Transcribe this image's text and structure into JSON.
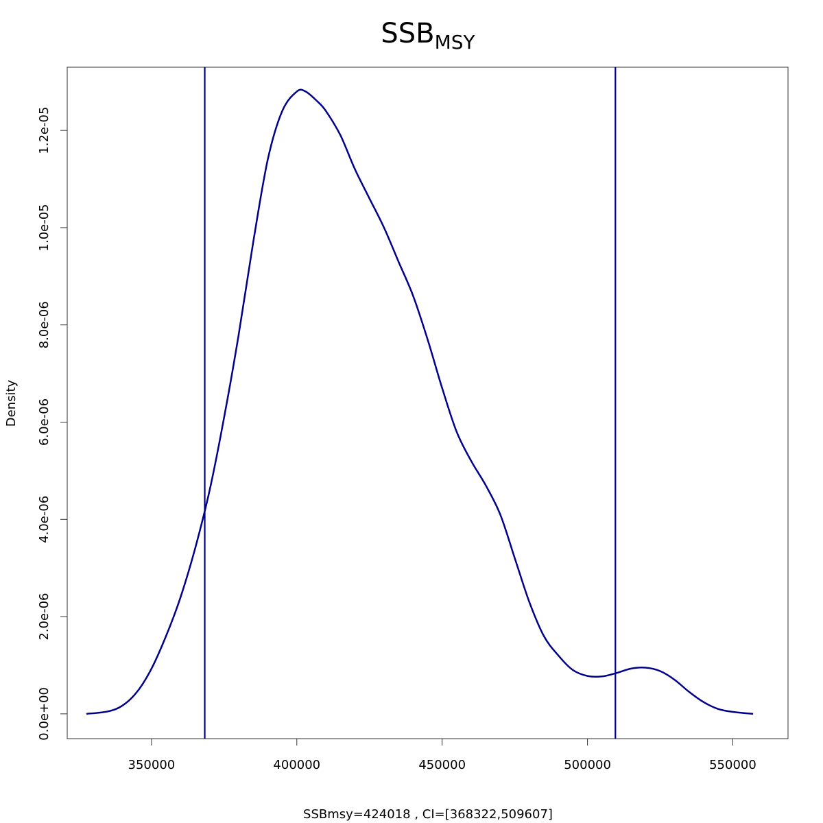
{
  "chart_data": {
    "type": "line",
    "title_main": "SSB",
    "title_sub": "MSY",
    "xlabel": "SSBmsy=424018 , CI=[368322,509607]",
    "ylabel": "Density",
    "xlim": [
      321000,
      569000
    ],
    "ylim": [
      -5.1e-07,
      1.33e-05
    ],
    "x_ticks": [
      {
        "value": 350000,
        "label": "350000"
      },
      {
        "value": 400000,
        "label": "400000"
      },
      {
        "value": 450000,
        "label": "450000"
      },
      {
        "value": 500000,
        "label": "500000"
      },
      {
        "value": 550000,
        "label": "550000"
      }
    ],
    "y_ticks": [
      {
        "value": 0,
        "label": "0.0e+00"
      },
      {
        "value": 2e-06,
        "label": "2.0e-06"
      },
      {
        "value": 4e-06,
        "label": "4.0e-06"
      },
      {
        "value": 6e-06,
        "label": "6.0e-06"
      },
      {
        "value": 8e-06,
        "label": "8.0e-06"
      },
      {
        "value": 1e-05,
        "label": "1.0e-05"
      },
      {
        "value": 1.2e-05,
        "label": "1.2e-05"
      }
    ],
    "series": [
      {
        "color": "#00008B",
        "points": [
          [
            327600,
            0.0
          ],
          [
            335000,
            5e-08
          ],
          [
            340000,
            1.7e-07
          ],
          [
            345000,
            4.5e-07
          ],
          [
            350000,
            9.3e-07
          ],
          [
            355000,
            1.6e-06
          ],
          [
            360000,
            2.4e-06
          ],
          [
            365000,
            3.4e-06
          ],
          [
            370000,
            4.6e-06
          ],
          [
            375000,
            6.1e-06
          ],
          [
            380000,
            7.8e-06
          ],
          [
            385000,
            9.7e-06
          ],
          [
            390000,
            1.14e-05
          ],
          [
            395000,
            1.24e-05
          ],
          [
            400000,
            1.28e-05
          ],
          [
            403000,
            1.28e-05
          ],
          [
            407000,
            1.26e-05
          ],
          [
            410000,
            1.24e-05
          ],
          [
            415000,
            1.19e-05
          ],
          [
            420000,
            1.12e-05
          ],
          [
            425000,
            1.06e-05
          ],
          [
            430000,
            1e-05
          ],
          [
            435000,
            9.3e-06
          ],
          [
            440000,
            8.6e-06
          ],
          [
            445000,
            7.7e-06
          ],
          [
            450000,
            6.7e-06
          ],
          [
            455000,
            5.8e-06
          ],
          [
            460000,
            5.2e-06
          ],
          [
            465000,
            4.7e-06
          ],
          [
            470000,
            4.1e-06
          ],
          [
            475000,
            3.2e-06
          ],
          [
            480000,
            2.3e-06
          ],
          [
            485000,
            1.6e-06
          ],
          [
            490000,
            1.2e-06
          ],
          [
            495000,
            9e-07
          ],
          [
            500000,
            7.8e-07
          ],
          [
            505000,
            7.7e-07
          ],
          [
            510000,
            8.4e-07
          ],
          [
            515000,
            9.3e-07
          ],
          [
            520000,
            9.5e-07
          ],
          [
            525000,
            8.8e-07
          ],
          [
            530000,
            7e-07
          ],
          [
            535000,
            4.5e-07
          ],
          [
            540000,
            2.4e-07
          ],
          [
            545000,
            1e-07
          ],
          [
            550000,
            4e-08
          ],
          [
            557000,
            0.0
          ]
        ]
      }
    ],
    "vlines": [
      {
        "x": 368322,
        "color": "#00008B"
      },
      {
        "x": 509607,
        "color": "#00008B"
      }
    ],
    "grid": false,
    "legend": "none"
  }
}
